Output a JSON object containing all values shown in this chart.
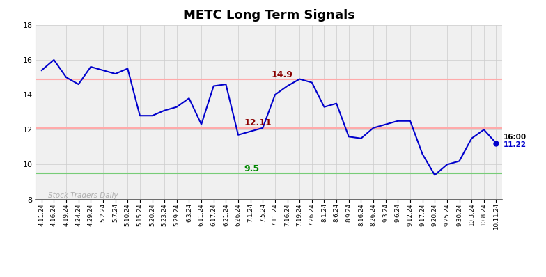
{
  "title": "METC Long Term Signals",
  "x_labels": [
    "4.11.24",
    "4.16.24",
    "4.19.24",
    "4.24.24",
    "4.29.24",
    "5.2.24",
    "5.7.24",
    "5.10.24",
    "5.15.24",
    "5.20.24",
    "5.23.24",
    "5.29.24",
    "6.3.24",
    "6.11.24",
    "6.17.24",
    "6.21.24",
    "6.26.24",
    "7.1.24",
    "7.5.24",
    "7.11.24",
    "7.16.24",
    "7.19.24",
    "7.26.24",
    "8.1.24",
    "8.6.24",
    "8.9.24",
    "8.16.24",
    "8.26.24",
    "9.3.24",
    "9.6.24",
    "9.12.24",
    "9.17.24",
    "9.20.24",
    "9.25.24",
    "9.30.24",
    "10.3.24",
    "10.8.24",
    "10.11.24"
  ],
  "y_series": [
    15.4,
    16.0,
    15.0,
    14.6,
    15.6,
    15.4,
    15.2,
    15.5,
    12.8,
    12.8,
    13.1,
    13.3,
    13.8,
    12.3,
    14.5,
    14.6,
    11.7,
    11.9,
    12.1,
    14.0,
    14.5,
    14.9,
    14.7,
    13.3,
    13.5,
    11.6,
    11.5,
    12.1,
    12.3,
    12.5,
    12.5,
    10.6,
    9.4,
    10.0,
    10.2,
    11.5,
    12.0,
    11.22
  ],
  "hline_upper": 14.9,
  "hline_lower": 12.11,
  "hline_green": 9.5,
  "line_color": "#0000cc",
  "hline_red_color": "#ffaaaa",
  "hline_green_color": "#77cc77",
  "annotation_upper_val": "14.9",
  "annotation_upper_color": "#8b0000",
  "annotation_lower_val": "12.11",
  "annotation_lower_color": "#8b0000",
  "annotation_green_val": "9.5",
  "annotation_green_color": "#008800",
  "annotation_price": "11.22",
  "annotation_time": "16:00",
  "watermark": "Stock Traders Daily",
  "watermark_color": "#aaaaaa",
  "ylim_min": 8,
  "ylim_max": 18,
  "yticks": [
    8,
    10,
    12,
    14,
    16,
    18
  ],
  "background_color": "#ffffff",
  "plot_bg_color": "#f0f0f0",
  "grid_color": "#cccccc"
}
